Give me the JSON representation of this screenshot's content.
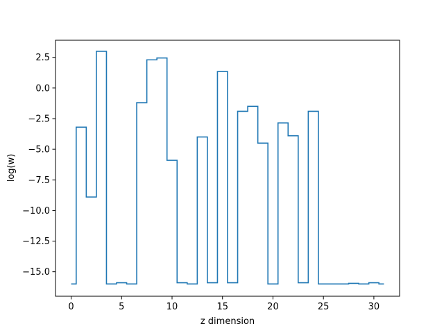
{
  "chart_data": {
    "type": "line",
    "drawstyle": "steps-mid",
    "xlabel": "z dimension",
    "ylabel": "log(w)",
    "xlim": [
      -1.55,
      32.55
    ],
    "ylim": [
      -17.0,
      3.9
    ],
    "xticks": [
      0,
      5,
      10,
      15,
      20,
      25,
      30
    ],
    "xtick_labels": [
      "0",
      "5",
      "10",
      "15",
      "20",
      "25",
      "30"
    ],
    "yticks": [
      -15.0,
      -12.5,
      -10.0,
      -7.5,
      -5.0,
      -2.5,
      0.0,
      2.5
    ],
    "ytick_labels": [
      "−15.0",
      "−12.5",
      "−10.0",
      "−7.5",
      "−5.0",
      "−2.5",
      "0.0",
      "2.5"
    ],
    "grid": false,
    "series": [
      {
        "color": "#1f77b4",
        "x": [
          0,
          1,
          2,
          3,
          4,
          5,
          6,
          7,
          8,
          9,
          10,
          11,
          12,
          13,
          14,
          15,
          16,
          17,
          18,
          19,
          20,
          21,
          22,
          23,
          24,
          25,
          26,
          27,
          28,
          29,
          30,
          31
        ],
        "y": [
          -16.0,
          -3.2,
          -8.9,
          3.0,
          -16.0,
          -15.9,
          -16.0,
          -1.2,
          2.3,
          2.45,
          -5.9,
          -15.9,
          -16.0,
          -4.0,
          -15.9,
          1.35,
          -15.9,
          -1.9,
          -1.5,
          -4.5,
          -16.0,
          -2.85,
          -3.9,
          -15.9,
          -1.9,
          -16.0,
          -16.0,
          -16.0,
          -15.95,
          -16.0,
          -15.9,
          -16.0
        ]
      }
    ]
  }
}
